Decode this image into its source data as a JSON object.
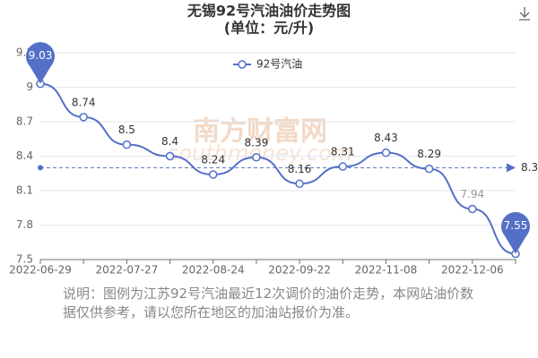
{
  "chart_data": {
    "type": "line",
    "title": "无锡92号汽油油价走势图",
    "subtitle": "(单位：元/升)",
    "categories": [
      "2022-06-29",
      null,
      "2022-07-27",
      null,
      "2022-08-24",
      null,
      "2022-09-22",
      null,
      "2022-11-08",
      null,
      "2022-12-06",
      null
    ],
    "series": [
      {
        "name": "92号汽油",
        "color": "#5470c6",
        "values": [
          9.03,
          8.74,
          8.5,
          8.4,
          8.24,
          8.39,
          8.16,
          8.31,
          8.43,
          8.29,
          7.94,
          7.55
        ]
      }
    ],
    "mark_line": {
      "value": 8.3
    },
    "ylim": [
      7.5,
      9.3
    ],
    "yticks": [
      7.5,
      7.8,
      8.1,
      8.4,
      8.7,
      9,
      9.3
    ],
    "grid": true,
    "legend": "top",
    "watermark": {
      "name": "南方财富网",
      "url": "southmoney.com"
    },
    "note": "说明：图例为江苏92号汽油最近12次调价的油价走势，本网站油价数据仅供参考，请以您所在地区的加油站报价为准。"
  }
}
